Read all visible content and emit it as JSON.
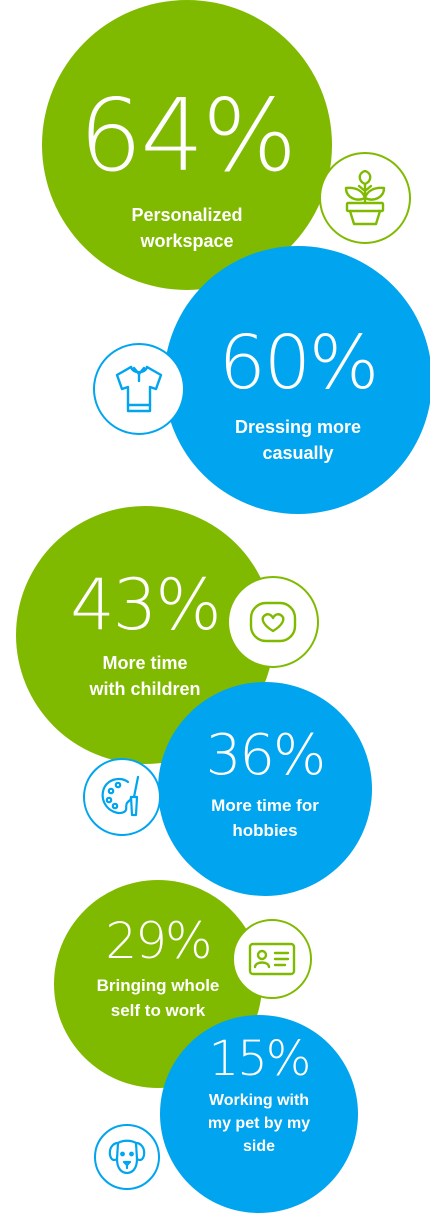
{
  "colors": {
    "green": "#7fba00",
    "blue": "#00a4ef"
  },
  "chart_data": {
    "type": "bubble",
    "unit": "%",
    "items": [
      {
        "value": 64,
        "display": "64%",
        "label": "Personalized\nworkspace",
        "color": "green",
        "icon": "plant-icon"
      },
      {
        "value": 60,
        "display": "60%",
        "label": "Dressing more\ncasually",
        "color": "blue",
        "icon": "shirt-icon"
      },
      {
        "value": 43,
        "display": "43%",
        "label": "More time\nwith children",
        "color": "green",
        "icon": "heart-icon"
      },
      {
        "value": 36,
        "display": "36%",
        "label": "More time for\nhobbies",
        "color": "blue",
        "icon": "palette-icon"
      },
      {
        "value": 29,
        "display": "29%",
        "label": "Bringing whole\nself to work",
        "color": "green",
        "icon": "id-card-icon"
      },
      {
        "value": 15,
        "display": "15%",
        "label": "Working with\nmy pet by my\nside",
        "color": "blue",
        "icon": "dog-icon"
      }
    ]
  }
}
